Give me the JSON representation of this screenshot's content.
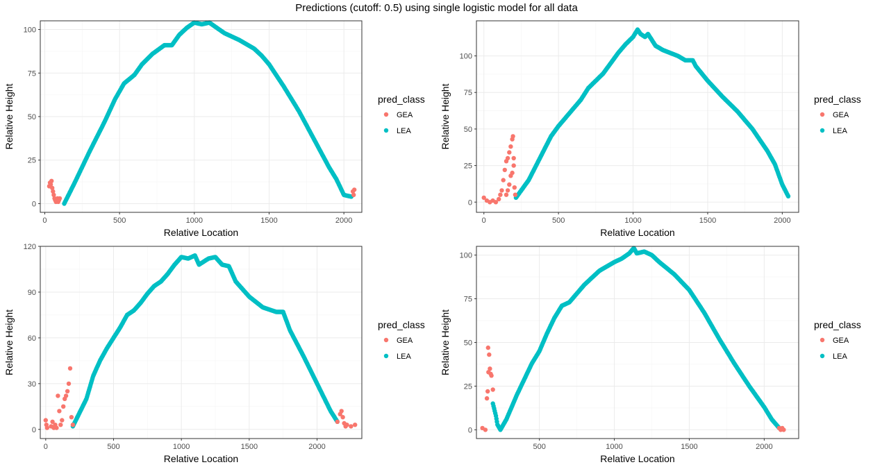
{
  "page": {
    "title": "Predictions (cutoff: 0.5) using single logistic model for all data"
  },
  "colors": {
    "GEA": "#F8766D",
    "LEA": "#00BFC4",
    "grid_major": "#EBEBEB",
    "grid_minor": "#F5F5F5",
    "panel_border": "#333333"
  },
  "chart_data": [
    {
      "type": "scatter",
      "xlabel": "Relative Location",
      "ylabel": "Relative Height",
      "xlim": [
        -30,
        2120
      ],
      "ylim": [
        -5,
        105
      ],
      "xticks": [
        0,
        500,
        1000,
        1500,
        2000
      ],
      "yticks": [
        0,
        25,
        50,
        75,
        100
      ],
      "grid": true,
      "legend": {
        "title": "pred_class",
        "entries": [
          "GEA",
          "LEA"
        ],
        "position": "right"
      },
      "series": [
        {
          "name": "GEA",
          "points": [
            [
              30,
              10
            ],
            [
              35,
              12
            ],
            [
              40,
              11
            ],
            [
              45,
              13
            ],
            [
              50,
              9
            ],
            [
              55,
              7
            ],
            [
              60,
              5
            ],
            [
              65,
              3
            ],
            [
              70,
              2
            ],
            [
              75,
              1
            ],
            [
              80,
              2
            ],
            [
              85,
              3
            ],
            [
              90,
              1
            ],
            [
              95,
              2
            ],
            [
              100,
              3
            ],
            [
              2060,
              7
            ],
            [
              2065,
              5
            ],
            [
              2070,
              8
            ]
          ]
        },
        {
          "name": "LEA",
          "anchors": [
            [
              130,
              0
            ],
            [
              200,
              12
            ],
            [
              300,
              30
            ],
            [
              400,
              47
            ],
            [
              470,
              60
            ],
            [
              530,
              69
            ],
            [
              600,
              74
            ],
            [
              650,
              80
            ],
            [
              720,
              86
            ],
            [
              800,
              91
            ],
            [
              850,
              91
            ],
            [
              900,
              97
            ],
            [
              950,
              101
            ],
            [
              1000,
              104
            ],
            [
              1050,
              103
            ],
            [
              1100,
              104
            ],
            [
              1150,
              101
            ],
            [
              1200,
              98
            ],
            [
              1300,
              94
            ],
            [
              1400,
              89
            ],
            [
              1450,
              85
            ],
            [
              1500,
              80
            ],
            [
              1600,
              67
            ],
            [
              1700,
              53
            ],
            [
              1800,
              37
            ],
            [
              1900,
              21
            ],
            [
              1950,
              14
            ],
            [
              2000,
              5
            ],
            [
              2050,
              4
            ]
          ]
        }
      ]
    },
    {
      "type": "scatter",
      "xlabel": "Relative Location",
      "ylabel": "Relative Height",
      "xlim": [
        -50,
        2110
      ],
      "ylim": [
        -7,
        124
      ],
      "xticks": [
        0,
        500,
        1000,
        1500,
        2000
      ],
      "yticks": [
        0,
        25,
        50,
        75,
        100
      ],
      "grid": true,
      "legend": {
        "title": "pred_class",
        "entries": [
          "GEA",
          "LEA"
        ],
        "position": "right"
      },
      "series": [
        {
          "name": "GEA",
          "points": [
            [
              0,
              3
            ],
            [
              20,
              1
            ],
            [
              40,
              0
            ],
            [
              60,
              1
            ],
            [
              80,
              0
            ],
            [
              100,
              2
            ],
            [
              110,
              5
            ],
            [
              120,
              8
            ],
            [
              130,
              15
            ],
            [
              140,
              22
            ],
            [
              150,
              28
            ],
            [
              160,
              30
            ],
            [
              170,
              34
            ],
            [
              180,
              38
            ],
            [
              190,
              43
            ],
            [
              195,
              45
            ],
            [
              200,
              30
            ],
            [
              205,
              10
            ],
            [
              210,
              5
            ],
            [
              200,
              25
            ],
            [
              190,
              20
            ],
            [
              180,
              18
            ],
            [
              170,
              12
            ],
            [
              160,
              8
            ],
            [
              150,
              5
            ]
          ]
        },
        {
          "name": "LEA",
          "anchors": [
            [
              215,
              3
            ],
            [
              300,
              15
            ],
            [
              400,
              35
            ],
            [
              450,
              45
            ],
            [
              500,
              52
            ],
            [
              600,
              64
            ],
            [
              650,
              70
            ],
            [
              700,
              78
            ],
            [
              750,
              83
            ],
            [
              800,
              88
            ],
            [
              850,
              95
            ],
            [
              900,
              102
            ],
            [
              950,
              108
            ],
            [
              1000,
              113
            ],
            [
              1030,
              118
            ],
            [
              1050,
              115
            ],
            [
              1080,
              113
            ],
            [
              1100,
              115
            ],
            [
              1150,
              107
            ],
            [
              1200,
              104
            ],
            [
              1300,
              100
            ],
            [
              1350,
              97
            ],
            [
              1400,
              97
            ],
            [
              1420,
              93
            ],
            [
              1500,
              83
            ],
            [
              1600,
              72
            ],
            [
              1700,
              62
            ],
            [
              1800,
              50
            ],
            [
              1900,
              35
            ],
            [
              1950,
              26
            ],
            [
              2000,
              12
            ],
            [
              2040,
              4
            ]
          ]
        }
      ]
    },
    {
      "type": "scatter",
      "xlabel": "Relative Location",
      "ylabel": "Relative Height",
      "xlim": [
        -40,
        2330
      ],
      "ylim": [
        -6,
        120
      ],
      "xticks": [
        0,
        500,
        1000,
        1500,
        2000
      ],
      "yticks": [
        0,
        30,
        60,
        90,
        120
      ],
      "grid": true,
      "legend": {
        "title": "pred_class",
        "entries": [
          "GEA",
          "LEA"
        ],
        "position": "right"
      },
      "series": [
        {
          "name": "GEA",
          "points": [
            [
              0,
              6
            ],
            [
              5,
              3
            ],
            [
              10,
              1
            ],
            [
              40,
              2
            ],
            [
              50,
              5
            ],
            [
              60,
              1
            ],
            [
              70,
              3
            ],
            [
              80,
              1
            ],
            [
              90,
              22
            ],
            [
              100,
              12
            ],
            [
              110,
              3
            ],
            [
              120,
              6
            ],
            [
              130,
              15
            ],
            [
              140,
              20
            ],
            [
              150,
              22
            ],
            [
              160,
              25
            ],
            [
              170,
              30
            ],
            [
              180,
              40
            ],
            [
              190,
              8
            ],
            [
              200,
              3
            ],
            [
              2150,
              5
            ],
            [
              2170,
              10
            ],
            [
              2180,
              12
            ],
            [
              2190,
              8
            ],
            [
              2200,
              4
            ],
            [
              2210,
              2
            ],
            [
              2220,
              3
            ],
            [
              2250,
              2
            ],
            [
              2280,
              3
            ]
          ]
        },
        {
          "name": "LEA",
          "anchors": [
            [
              200,
              2
            ],
            [
              300,
              20
            ],
            [
              350,
              35
            ],
            [
              400,
              45
            ],
            [
              450,
              53
            ],
            [
              500,
              60
            ],
            [
              550,
              67
            ],
            [
              600,
              75
            ],
            [
              650,
              78
            ],
            [
              700,
              83
            ],
            [
              750,
              89
            ],
            [
              800,
              94
            ],
            [
              850,
              97
            ],
            [
              900,
              102
            ],
            [
              950,
              108
            ],
            [
              1000,
              113
            ],
            [
              1050,
              112
            ],
            [
              1100,
              114
            ],
            [
              1130,
              108
            ],
            [
              1200,
              112
            ],
            [
              1250,
              113
            ],
            [
              1300,
              108
            ],
            [
              1350,
              107
            ],
            [
              1400,
              97
            ],
            [
              1500,
              87
            ],
            [
              1600,
              80
            ],
            [
              1700,
              77
            ],
            [
              1750,
              77
            ],
            [
              1800,
              65
            ],
            [
              1900,
              48
            ],
            [
              2000,
              30
            ],
            [
              2100,
              12
            ],
            [
              2150,
              5
            ]
          ]
        }
      ]
    },
    {
      "type": "scatter",
      "xlabel": "Relative Location",
      "ylabel": "Relative Height",
      "xlim": [
        80,
        2230
      ],
      "ylim": [
        -5,
        105
      ],
      "xticks": [
        500,
        1000,
        1500,
        2000
      ],
      "yticks": [
        0,
        25,
        50,
        75,
        100
      ],
      "grid": true,
      "legend": {
        "title": "pred_class",
        "entries": [
          "GEA",
          "LEA"
        ],
        "position": "right"
      },
      "series": [
        {
          "name": "GEA",
          "points": [
            [
              120,
              1
            ],
            [
              140,
              0
            ],
            [
              150,
              18
            ],
            [
              155,
              22
            ],
            [
              160,
              33
            ],
            [
              158,
              47
            ],
            [
              165,
              43
            ],
            [
              170,
              35
            ],
            [
              175,
              32
            ],
            [
              180,
              31
            ],
            [
              190,
              23
            ],
            [
              2100,
              1
            ],
            [
              2110,
              0
            ],
            [
              2120,
              1
            ],
            [
              2130,
              0
            ]
          ]
        },
        {
          "name": "LEA",
          "anchors": [
            [
              190,
              15
            ],
            [
              210,
              8
            ],
            [
              220,
              3
            ],
            [
              240,
              0
            ],
            [
              280,
              6
            ],
            [
              350,
              20
            ],
            [
              450,
              38
            ],
            [
              500,
              45
            ],
            [
              550,
              55
            ],
            [
              600,
              64
            ],
            [
              650,
              71
            ],
            [
              700,
              73
            ],
            [
              750,
              78
            ],
            [
              800,
              83
            ],
            [
              900,
              91
            ],
            [
              1000,
              96
            ],
            [
              1050,
              98
            ],
            [
              1100,
              101
            ],
            [
              1130,
              104
            ],
            [
              1150,
              101
            ],
            [
              1200,
              102
            ],
            [
              1250,
              100
            ],
            [
              1300,
              96
            ],
            [
              1400,
              89
            ],
            [
              1500,
              80
            ],
            [
              1600,
              67
            ],
            [
              1700,
              52
            ],
            [
              1800,
              38
            ],
            [
              1900,
              25
            ],
            [
              2000,
              13
            ],
            [
              2050,
              6
            ],
            [
              2100,
              1
            ]
          ]
        }
      ]
    }
  ]
}
